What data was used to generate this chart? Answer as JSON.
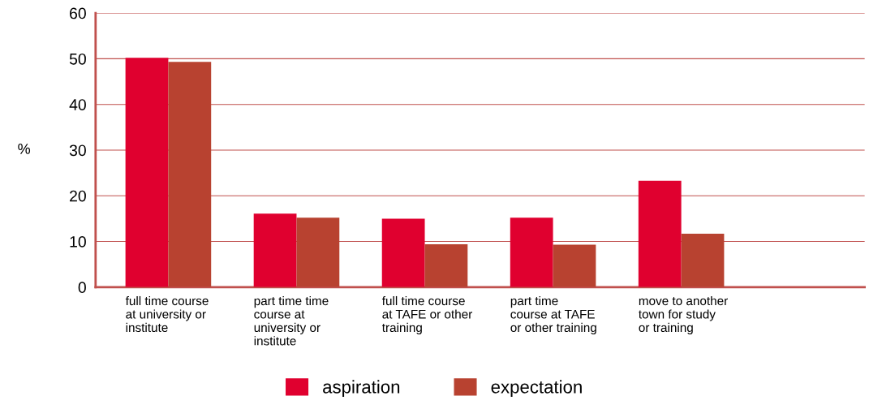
{
  "chart_data": {
    "type": "bar",
    "ylabel": "%",
    "categories": [
      "full time course\nat university or\ninstitute",
      "part time time\ncourse at\nuniversity or\ninstitute",
      "full time course\nat TAFE or other\ntraining",
      "part time\ncourse at TAFE\nor other training",
      "move to another\ntown for study\nor training"
    ],
    "series": [
      {
        "name": "aspiration",
        "color": "#e0002f",
        "values": [
          50.2,
          16.1,
          15.0,
          15.2,
          23.3
        ]
      },
      {
        "name": "expectation",
        "color": "#b84230",
        "values": [
          49.3,
          15.2,
          9.4,
          9.3,
          11.7
        ]
      }
    ],
    "ylim": [
      0,
      60
    ],
    "yticks": [
      0,
      10,
      20,
      30,
      40,
      50,
      60
    ],
    "grid": "y",
    "legend": "bottom"
  }
}
